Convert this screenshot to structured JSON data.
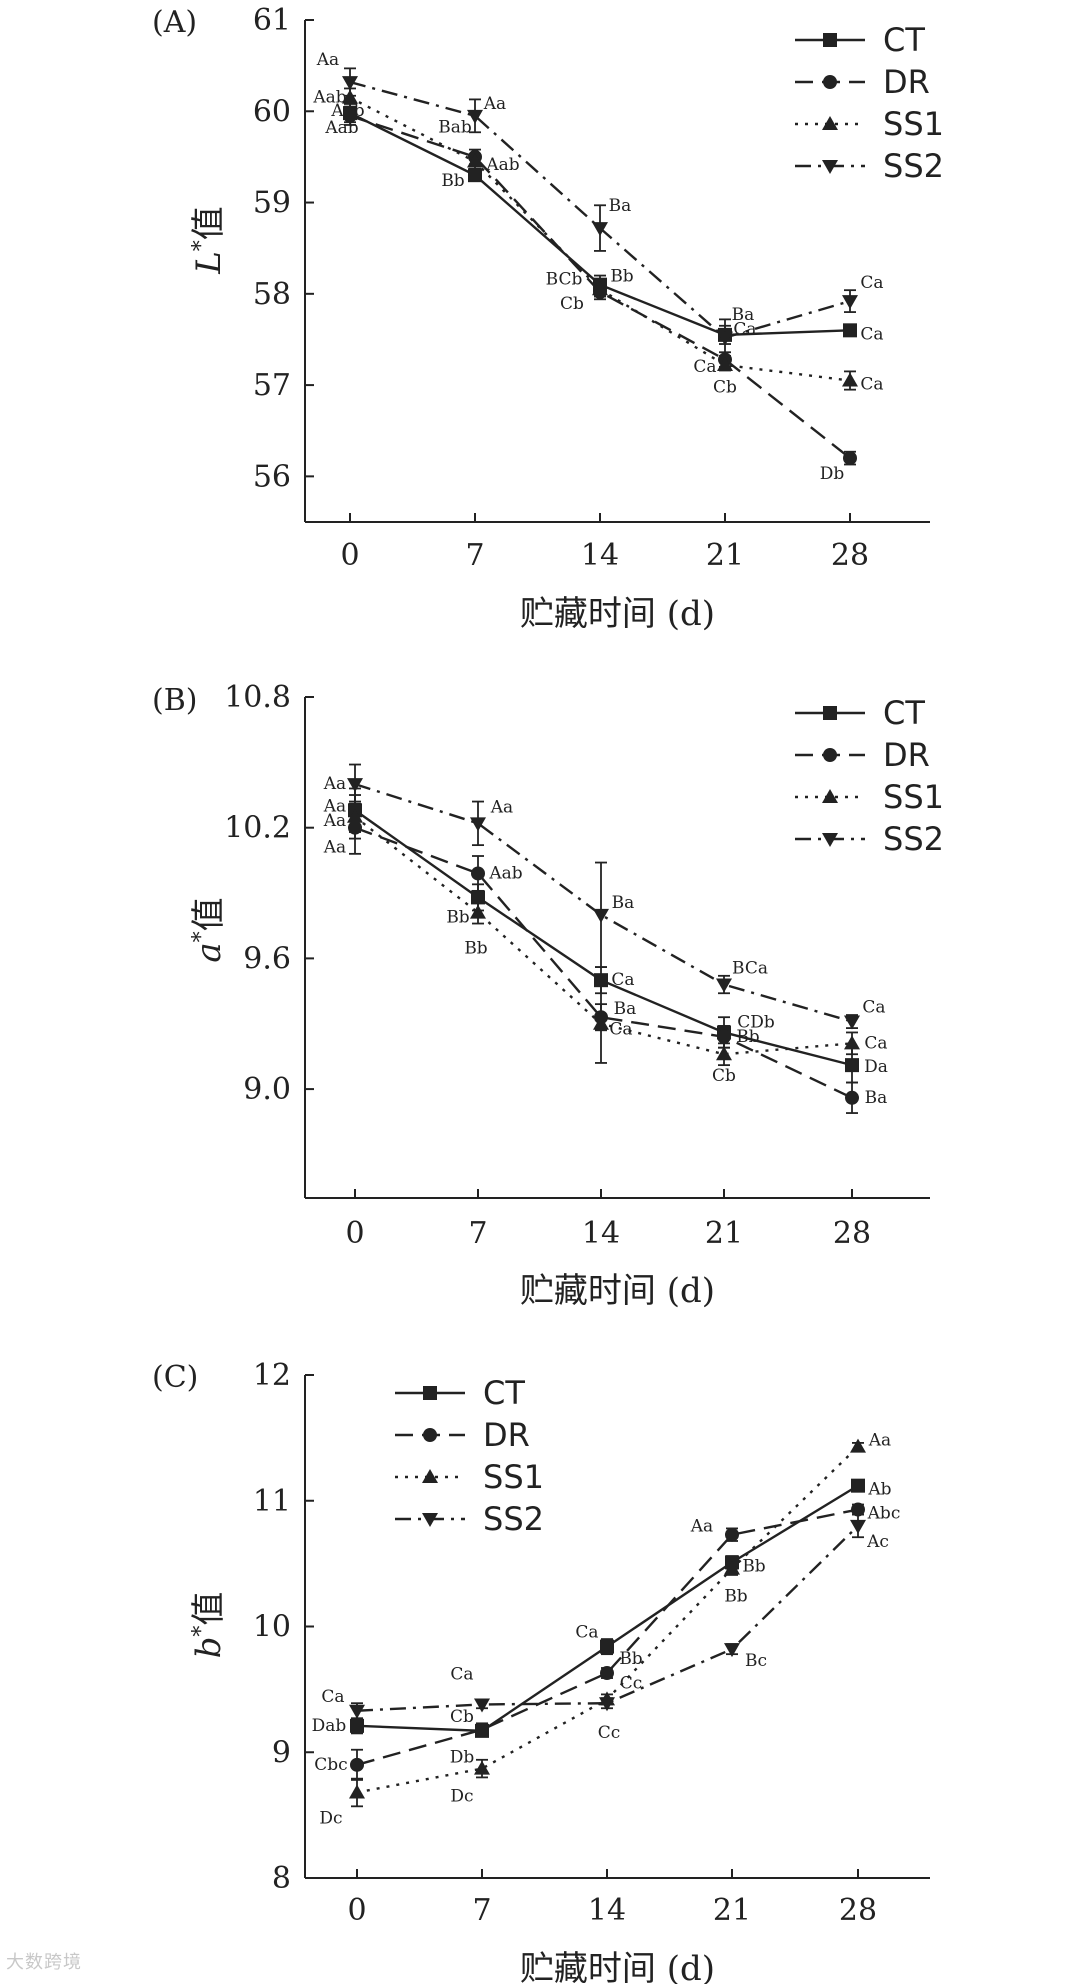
{
  "watermark": "大数跨境",
  "style": {
    "line_color": "#222222",
    "background": "#ffffff"
  },
  "series_styles": [
    {
      "name": "CT",
      "dash": "solid",
      "marker": "square"
    },
    {
      "name": "DR",
      "dash": "dashed",
      "marker": "circle"
    },
    {
      "name": "SS1",
      "dash": "dotted",
      "marker": "triangle-up"
    },
    {
      "name": "SS2",
      "dash": "dash-dot",
      "marker": "triangle-down"
    }
  ],
  "chart_data": [
    {
      "type": "line",
      "panel_label": "(A)",
      "xlabel": "贮藏时间 (d)",
      "ylabel_italic": "L",
      "ylabel_sup": "*",
      "ylabel_suffix": "值",
      "categories": [
        "0",
        "7",
        "14",
        "21",
        "28"
      ],
      "ylim": [
        55.5,
        61
      ],
      "yticks": [
        56,
        57,
        58,
        59,
        60,
        61
      ],
      "ytick_labels": [
        "56",
        "57",
        "58",
        "59",
        "60",
        "61"
      ],
      "legend_position": "top-right",
      "series": [
        {
          "name": "CT",
          "values": [
            59.98,
            59.3,
            58.1,
            57.55,
            57.6
          ],
          "errors": [
            0.1,
            0.05,
            0.1,
            0.1,
            0.06
          ],
          "labels": [
            "Aab",
            "Bb",
            "Bb",
            "Ba",
            "Ca"
          ]
        },
        {
          "name": "DR",
          "values": [
            59.95,
            59.5,
            58.02,
            57.28,
            56.2
          ],
          "errors": [
            0.1,
            0.08,
            0.08,
            0.08,
            0.07
          ],
          "labels": [
            "Aab",
            "Aab",
            "Cb",
            "Cb",
            "Db"
          ]
        },
        {
          "name": "SS1",
          "values": [
            60.15,
            59.45,
            58.05,
            57.22,
            57.05
          ],
          "errors": [
            0.1,
            0.08,
            0.08,
            0.06,
            0.1
          ],
          "labels": [
            "Aab",
            "Bab",
            "BCb",
            "Ca",
            "Ca"
          ]
        },
        {
          "name": "SS2",
          "values": [
            60.32,
            59.95,
            58.72,
            57.52,
            57.92
          ],
          "errors": [
            0.15,
            0.18,
            0.25,
            0.2,
            0.12
          ],
          "labels": [
            "Aa",
            "Aa",
            "Ba",
            "Ca",
            "Ca"
          ]
        }
      ]
    },
    {
      "type": "line",
      "panel_label": "(B)",
      "xlabel": "贮藏时间 (d)",
      "ylabel_italic": "a",
      "ylabel_sup": "*",
      "ylabel_suffix": "值",
      "categories": [
        "0",
        "7",
        "14",
        "21",
        "28"
      ],
      "ylim": [
        8.5,
        10.8
      ],
      "yticks": [
        9.0,
        9.6,
        10.2,
        10.8
      ],
      "ytick_labels": [
        "9.0",
        "9.6",
        "10.2",
        "10.8"
      ],
      "legend_position": "top-right",
      "series": [
        {
          "name": "CT",
          "values": [
            10.28,
            9.88,
            9.5,
            9.26,
            9.11
          ],
          "errors": [
            0.1,
            0.06,
            0.06,
            0.07,
            0.08
          ],
          "labels": [
            "Aa",
            "Bb",
            "Ca",
            "CDb",
            "Da"
          ]
        },
        {
          "name": "DR",
          "values": [
            10.2,
            9.99,
            9.33,
            9.24,
            8.96
          ],
          "errors": [
            0.12,
            0.08,
            0.06,
            0.05,
            0.07
          ],
          "labels": [
            "Aa",
            "Aab",
            "Ba",
            "Bb",
            "Ba"
          ]
        },
        {
          "name": "SS1",
          "values": [
            10.25,
            9.81,
            9.3,
            9.16,
            9.21
          ],
          "errors": [
            0.1,
            0.05,
            0.18,
            0.05,
            0.05
          ],
          "labels": [
            "Aa",
            "Bb",
            "Ca",
            "Cb",
            "Ca"
          ]
        },
        {
          "name": "SS2",
          "values": [
            10.4,
            10.22,
            9.8,
            9.48,
            9.31
          ],
          "errors": [
            0.09,
            0.1,
            0.24,
            0.04,
            0.03
          ],
          "labels": [
            "Aa",
            "Aa",
            "Ba",
            "BCa",
            "Ca"
          ]
        }
      ]
    },
    {
      "type": "line",
      "panel_label": "(C)",
      "xlabel": "贮藏时间 (d)",
      "ylabel_italic": "b",
      "ylabel_sup": "*",
      "ylabel_suffix": "值",
      "categories": [
        "0",
        "7",
        "14",
        "21",
        "28"
      ],
      "ylim": [
        8,
        12
      ],
      "yticks": [
        8,
        9,
        10,
        11,
        12
      ],
      "ytick_labels": [
        "8",
        "9",
        "10",
        "11",
        "12"
      ],
      "legend_position": "top-left",
      "series": [
        {
          "name": "CT",
          "values": [
            9.21,
            9.17,
            9.84,
            10.51,
            11.12
          ],
          "errors": [
            0.06,
            0.04,
            0.06,
            0.05,
            0.03
          ],
          "labels": [
            "Dab",
            "Cb",
            "Ca",
            "Bb",
            "Ab"
          ]
        },
        {
          "name": "DR",
          "values": [
            8.9,
            9.18,
            9.63,
            10.73,
            10.93
          ],
          "errors": [
            0.12,
            0.05,
            0.04,
            0.05,
            0.04
          ],
          "labels": [
            "Cbc",
            "Db",
            "Bb",
            "Aa",
            "Abc"
          ]
        },
        {
          "name": "SS1",
          "values": [
            8.68,
            8.87,
            9.42,
            10.46,
            11.43
          ],
          "errors": [
            0.11,
            0.07,
            0.04,
            0.05,
            0.03
          ],
          "labels": [
            "Dc",
            "Dc",
            "Cc",
            "Bb",
            "Aa"
          ]
        },
        {
          "name": "SS2",
          "values": [
            9.33,
            9.38,
            9.39,
            9.82,
            10.8
          ],
          "errors": [
            0.06,
            0.03,
            0.04,
            0.04,
            0.09
          ],
          "labels": [
            "Ca",
            "Ca",
            "Cc",
            "Bc",
            "Ac"
          ]
        }
      ]
    }
  ]
}
